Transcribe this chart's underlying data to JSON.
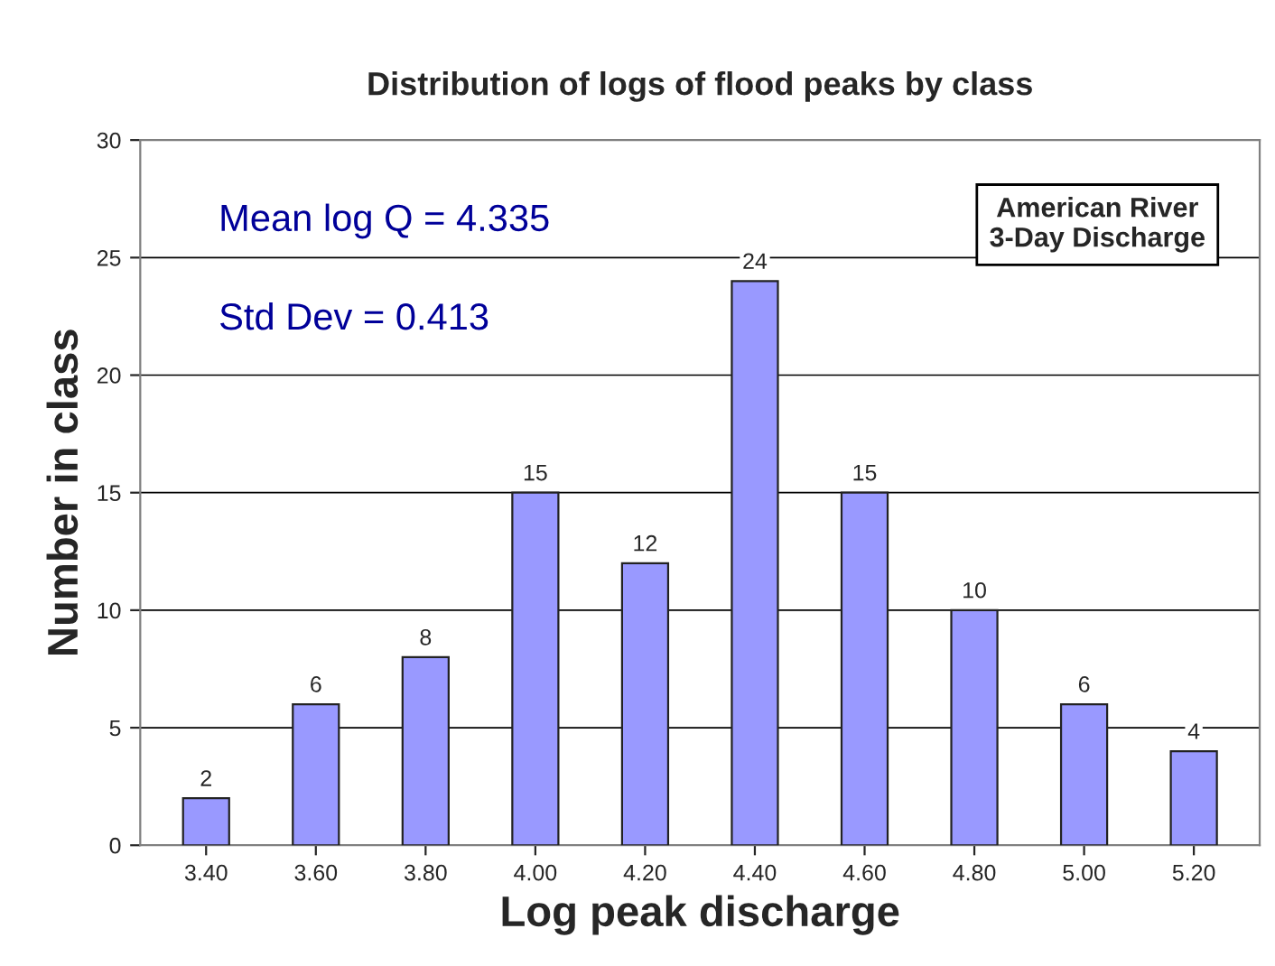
{
  "chart_data": {
    "type": "bar",
    "title": "Distribution of logs of flood peaks by class",
    "xlabel": "Log peak discharge",
    "ylabel": "Number in class",
    "categories": [
      "3.40",
      "3.60",
      "3.80",
      "4.00",
      "4.20",
      "4.40",
      "4.60",
      "4.80",
      "5.00",
      "5.20"
    ],
    "series": [
      {
        "color": "#9999ff",
        "values": [
          2,
          6,
          8,
          15,
          12,
          24,
          15,
          10,
          6,
          4
        ]
      }
    ],
    "data_labels": true,
    "ylim": [
      0,
      30
    ],
    "yticks": [
      0,
      5,
      10,
      15,
      20,
      25,
      30
    ],
    "grid": "y",
    "legend": false,
    "annotations": [
      "Mean log Q = 4.335",
      "Std Dev = 0.413",
      "American River\n3-Day Discharge"
    ]
  }
}
